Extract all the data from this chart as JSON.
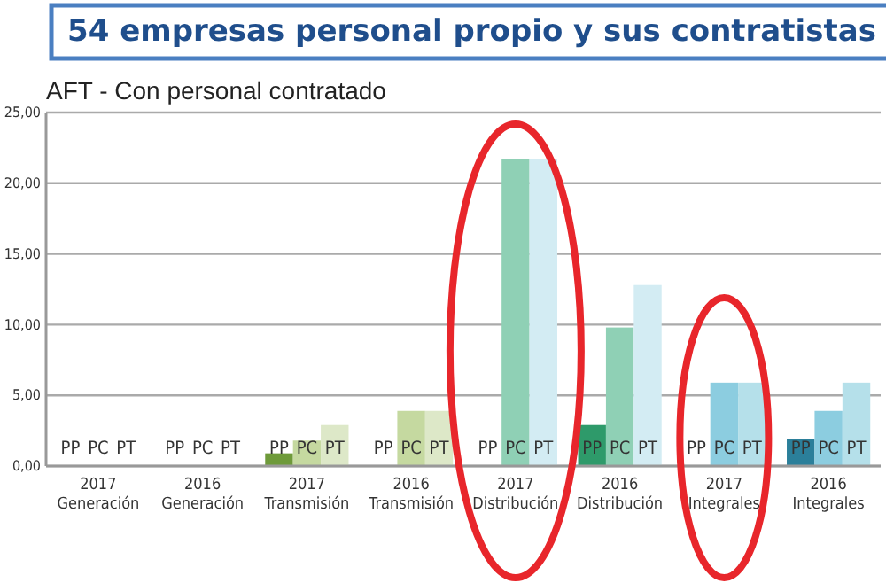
{
  "chart_data": {
    "type": "bar",
    "title": "54 empresas personal propio y sus contratistas",
    "subtitle": "AFT - Con personal contratado",
    "categories": [
      "2017 Generación",
      "2016 Generación",
      "2017 Transmisión",
      "2016 Transmisión",
      "2017 Distribución",
      "2016 Distribución",
      "2017 Integrales",
      "2016 Integrales"
    ],
    "series": [
      {
        "name": "PP",
        "values": [
          0,
          0,
          0.9,
          0,
          0,
          2.9,
          0,
          1.9
        ],
        "colors": [
          "#6e9a3a",
          "#6e9a3a",
          "#6e9a3a",
          "#6e9a3a",
          "#2e9a6a",
          "#2e9a6a",
          "#2b7f9a",
          "#2b7f9a"
        ]
      },
      {
        "name": "PC",
        "values": [
          0,
          0,
          1.8,
          3.9,
          21.7,
          9.8,
          5.9,
          3.9
        ],
        "colors": [
          "#c5d9a0",
          "#c5d9a0",
          "#c5d9a0",
          "#c5d9a0",
          "#8fd0b5",
          "#8fd0b5",
          "#8ccde0",
          "#8ccde0"
        ]
      },
      {
        "name": "PT",
        "values": [
          0,
          0,
          2.9,
          3.9,
          21.7,
          12.8,
          5.9,
          5.9
        ],
        "colors": [
          "#dde8c8",
          "#dde8c8",
          "#dde8c8",
          "#dde8c8",
          "#d3ecf3",
          "#d3ecf3",
          "#b5e0ea",
          "#b5e0ea"
        ]
      }
    ],
    "ylim": [
      0,
      25
    ],
    "yticks": [
      {
        "value": 0,
        "label": "0,00"
      },
      {
        "value": 5,
        "label": "5,00"
      },
      {
        "value": 10,
        "label": "10,00"
      },
      {
        "value": 15,
        "label": "15,00"
      },
      {
        "value": 20,
        "label": "20,00"
      },
      {
        "value": 25,
        "label": "25,00"
      }
    ],
    "grid": "y",
    "legend": false
  }
}
